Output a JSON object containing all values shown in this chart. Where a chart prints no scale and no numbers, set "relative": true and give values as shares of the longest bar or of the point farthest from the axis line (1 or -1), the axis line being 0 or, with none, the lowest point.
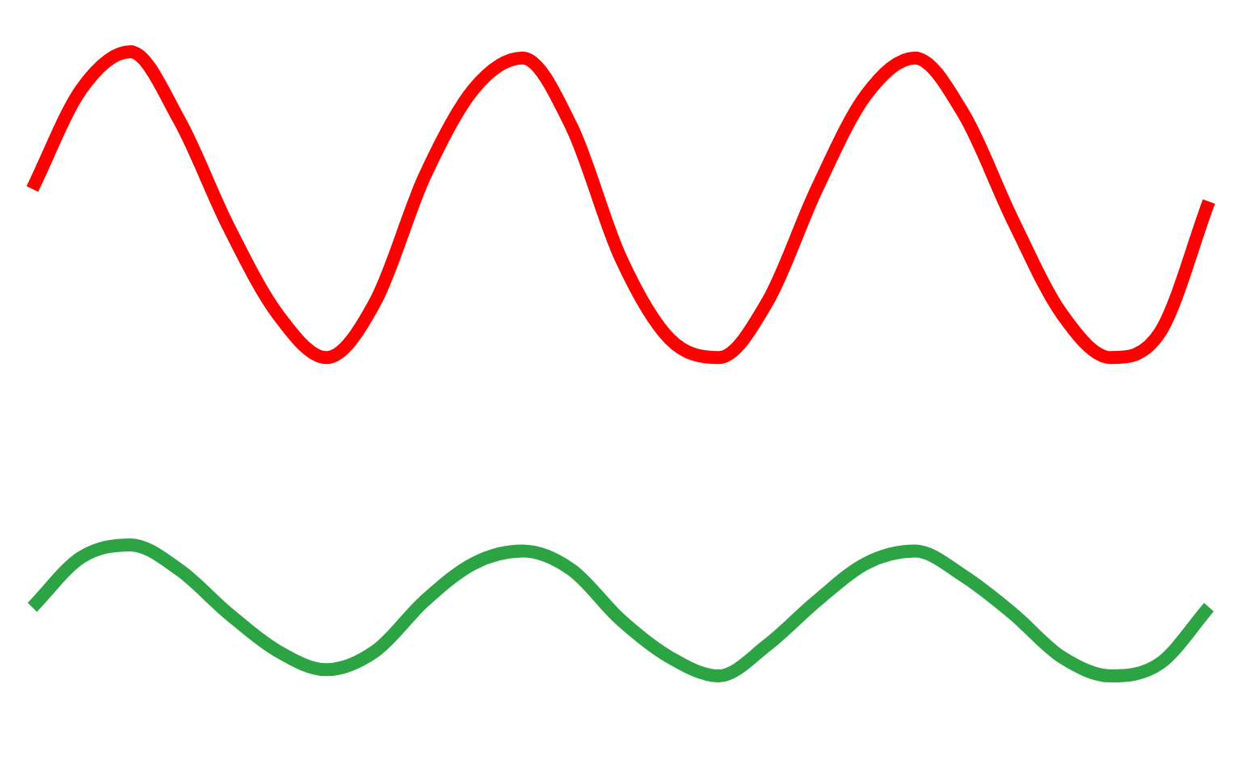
{
  "chart_data": {
    "type": "line",
    "relative": true,
    "categories": [
      null,
      null,
      null,
      null,
      null,
      null,
      null,
      null,
      null,
      null,
      null,
      null,
      null,
      null,
      null,
      null,
      null,
      null,
      null,
      null,
      null,
      null,
      null,
      null,
      null
    ],
    "series": [
      {
        "color": "#ff0000",
        "values": [
          0.78,
          0.94,
          1.0,
          0.89,
          0.72,
          0.58,
          0.51,
          0.6,
          0.8,
          0.94,
          0.99,
          0.88,
          0.67,
          0.54,
          0.51,
          0.6,
          0.78,
          0.93,
          0.99,
          0.9,
          0.73,
          0.58,
          0.51,
          0.55,
          0.76
        ]
      },
      {
        "color": "#2ca444",
        "values": [
          0.11,
          0.19,
          0.21,
          0.17,
          0.1,
          0.04,
          0.01,
          0.04,
          0.12,
          0.18,
          0.2,
          0.17,
          0.09,
          0.03,
          0.0,
          0.05,
          0.12,
          0.18,
          0.2,
          0.16,
          0.1,
          0.03,
          0.0,
          0.02,
          0.11
        ]
      }
    ],
    "legend": false,
    "marker": "none",
    "line_style": "solid"
  }
}
